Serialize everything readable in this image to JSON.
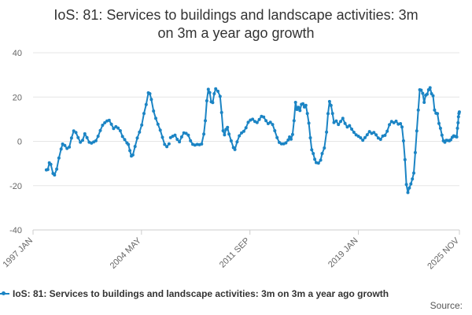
{
  "page": {
    "title_line1": "IoS: 81: Services to buildings and landscape activities: 3m",
    "title_line2": "on 3m a year ago growth",
    "source_label": "Source:"
  },
  "chart_data": {
    "type": "line",
    "title": "IoS: 81: Services to buildings and landscape activities: 3m on 3m a year ago growth",
    "xlabel": "",
    "ylabel": "",
    "ylim": [
      -40,
      40
    ],
    "yticks": [
      40,
      20,
      0,
      -20,
      -40
    ],
    "xlim": [
      1997.0,
      2025.833
    ],
    "xticks": [
      {
        "label": "1997 JAN",
        "value": 1997.0
      },
      {
        "label": "2004 MAY",
        "value": 2004.333
      },
      {
        "label": "2011 SEP",
        "value": 2011.667
      },
      {
        "label": "2019 JAN",
        "value": 2019.0
      },
      {
        "label": "2025 NOV",
        "value": 2025.833
      }
    ],
    "grid": true,
    "legend_position": "bottom",
    "color": "#1b84c4",
    "series": [
      {
        "name": "IoS: 81: Services to buildings and landscape activities: 3m on 3m a year ago growth",
        "points": [
          [
            1997.9,
            -12.9
          ],
          [
            1998.0,
            -12.7
          ],
          [
            1998.1,
            -9.7
          ],
          [
            1998.2,
            -10.4
          ],
          [
            1998.35,
            -14.5
          ],
          [
            1998.45,
            -15.2
          ],
          [
            1998.6,
            -12.5
          ],
          [
            1998.75,
            -7.5
          ],
          [
            1998.9,
            -3.5
          ],
          [
            1999.0,
            -1.2
          ],
          [
            1999.15,
            -1.9
          ],
          [
            1999.3,
            -3.2
          ],
          [
            1999.45,
            -2.6
          ],
          [
            1999.6,
            1.5
          ],
          [
            1999.75,
            4.7
          ],
          [
            1999.9,
            4.0
          ],
          [
            2000.05,
            1.7
          ],
          [
            2000.2,
            -0.4
          ],
          [
            2000.35,
            0.5
          ],
          [
            2000.5,
            3.4
          ],
          [
            2000.65,
            1.7
          ],
          [
            2000.8,
            -0.4
          ],
          [
            2000.95,
            -0.8
          ],
          [
            2001.1,
            -0.3
          ],
          [
            2001.25,
            0.3
          ],
          [
            2001.4,
            2.3
          ],
          [
            2001.55,
            4.9
          ],
          [
            2001.7,
            7.3
          ],
          [
            2001.85,
            8.4
          ],
          [
            2002.0,
            9.2
          ],
          [
            2002.15,
            9.5
          ],
          [
            2002.3,
            7.7
          ],
          [
            2002.45,
            5.8
          ],
          [
            2002.6,
            6.6
          ],
          [
            2002.75,
            6.0
          ],
          [
            2002.9,
            4.8
          ],
          [
            2003.05,
            2.2
          ],
          [
            2003.2,
            0.8
          ],
          [
            2003.35,
            -0.7
          ],
          [
            2003.45,
            -1.4
          ],
          [
            2003.55,
            -4.2
          ],
          [
            2003.65,
            -6.6
          ],
          [
            2003.75,
            -6.1
          ],
          [
            2003.9,
            -2.3
          ],
          [
            2004.05,
            1.5
          ],
          [
            2004.2,
            4.2
          ],
          [
            2004.35,
            7.4
          ],
          [
            2004.5,
            12.6
          ],
          [
            2004.65,
            16.6
          ],
          [
            2004.8,
            21.9
          ],
          [
            2004.9,
            21.5
          ],
          [
            2005.0,
            18.9
          ],
          [
            2005.15,
            13.7
          ],
          [
            2005.3,
            10.4
          ],
          [
            2005.45,
            7.7
          ],
          [
            2005.6,
            5.1
          ],
          [
            2005.75,
            1.8
          ],
          [
            2005.9,
            -1.4
          ],
          [
            2006.05,
            -2.4
          ],
          [
            2006.2,
            -1.1
          ],
          null,
          [
            2006.3,
            1.7
          ],
          [
            2006.45,
            2.3
          ],
          [
            2006.6,
            2.8
          ],
          [
            2006.75,
            0.9
          ],
          [
            2006.9,
            -0.2
          ],
          [
            2007.05,
            2.0
          ],
          [
            2007.2,
            3.8
          ],
          [
            2007.35,
            3.6
          ],
          [
            2007.5,
            2.8
          ],
          [
            2007.65,
            0.3
          ],
          [
            2007.8,
            -1.3
          ],
          [
            2007.95,
            -1.7
          ],
          [
            2008.1,
            -1.4
          ],
          [
            2008.25,
            -1.5
          ],
          [
            2008.4,
            -1.2
          ],
          [
            2008.55,
            3.3
          ],
          [
            2008.65,
            9.3
          ],
          [
            2008.75,
            18.3
          ],
          [
            2008.85,
            23.5
          ],
          [
            2008.95,
            22.0
          ],
          [
            2009.05,
            17.9
          ],
          [
            2009.15,
            17.5
          ],
          [
            2009.25,
            21.5
          ],
          [
            2009.35,
            23.7
          ],
          [
            2009.5,
            22.6
          ],
          [
            2009.65,
            20.3
          ],
          [
            2009.75,
            13.0
          ],
          [
            2009.85,
            4.8
          ],
          [
            2009.95,
            2.9
          ],
          [
            2010.05,
            5.4
          ],
          [
            2010.15,
            6.3
          ],
          [
            2010.25,
            3.3
          ],
          [
            2010.4,
            0.2
          ],
          [
            2010.55,
            -2.8
          ],
          [
            2010.65,
            -3.7
          ],
          [
            2010.8,
            -0.2
          ],
          [
            2010.95,
            2.5
          ],
          [
            2011.1,
            3.8
          ],
          [
            2011.25,
            4.5
          ],
          [
            2011.4,
            6.1
          ],
          [
            2011.55,
            8.6
          ],
          [
            2011.7,
            9.6
          ],
          [
            2011.85,
            10.0
          ],
          [
            2012.0,
            9.0
          ],
          [
            2012.15,
            8.5
          ],
          [
            2012.3,
            9.9
          ],
          [
            2012.45,
            11.3
          ],
          [
            2012.6,
            11.0
          ],
          [
            2012.75,
            9.3
          ],
          [
            2012.9,
            8.0
          ],
          [
            2013.05,
            8.6
          ],
          [
            2013.2,
            7.6
          ],
          [
            2013.35,
            4.8
          ],
          [
            2013.5,
            1.7
          ],
          [
            2013.65,
            -0.5
          ],
          [
            2013.8,
            -1.1
          ],
          [
            2013.95,
            -1.1
          ],
          [
            2014.1,
            -0.7
          ],
          [
            2014.25,
            0.6
          ],
          [
            2014.35,
            2.0
          ],
          [
            2014.45,
            1.0
          ],
          [
            2014.55,
            3.1
          ],
          [
            2014.65,
            9.3
          ],
          [
            2014.75,
            17.6
          ],
          [
            2014.85,
            14.4
          ],
          [
            2014.95,
            15.4
          ],
          [
            2015.05,
            13.9
          ],
          [
            2015.15,
            16.7
          ],
          [
            2015.25,
            17.0
          ],
          [
            2015.35,
            15.5
          ],
          [
            2015.45,
            16.3
          ],
          [
            2015.55,
            12.6
          ],
          [
            2015.65,
            8.2
          ],
          [
            2015.75,
            1.6
          ],
          [
            2015.85,
            -3.8
          ],
          [
            2015.95,
            -5.5
          ],
          [
            2016.05,
            -8.1
          ],
          [
            2016.15,
            -9.6
          ],
          [
            2016.3,
            -9.8
          ],
          [
            2016.45,
            -8.5
          ],
          [
            2016.55,
            -5.5
          ],
          [
            2016.7,
            -3.0
          ],
          [
            2016.85,
            4.2
          ],
          [
            2016.95,
            12.5
          ],
          [
            2017.05,
            18.0
          ],
          [
            2017.15,
            16.2
          ],
          [
            2017.25,
            12.6
          ],
          [
            2017.35,
            8.5
          ],
          [
            2017.5,
            9.2
          ],
          [
            2017.65,
            7.6
          ],
          [
            2017.8,
            9.0
          ],
          [
            2017.95,
            10.4
          ],
          [
            2018.1,
            8.1
          ],
          [
            2018.25,
            6.5
          ],
          [
            2018.4,
            7.1
          ],
          [
            2018.55,
            5.5
          ],
          [
            2018.7,
            4.1
          ],
          [
            2018.85,
            2.9
          ],
          [
            2019.0,
            2.3
          ],
          [
            2019.15,
            1.6
          ],
          [
            2019.3,
            0.5
          ],
          [
            2019.45,
            1.7
          ],
          [
            2019.6,
            3.0
          ],
          [
            2019.75,
            4.4
          ],
          [
            2019.9,
            3.6
          ],
          [
            2020.05,
            4.0
          ],
          [
            2020.2,
            2.9
          ],
          [
            2020.35,
            1.5
          ],
          [
            2020.5,
            0.9
          ],
          [
            2020.65,
            2.4
          ],
          [
            2020.8,
            2.7
          ],
          [
            2020.95,
            4.6
          ],
          [
            2021.1,
            7.5
          ],
          [
            2021.25,
            9.0
          ],
          [
            2021.4,
            8.4
          ],
          [
            2021.55,
            9.1
          ],
          [
            2021.7,
            7.8
          ],
          [
            2021.85,
            8.0
          ],
          [
            2021.95,
            6.5
          ],
          [
            2022.05,
            0.2
          ],
          [
            2022.15,
            -8.3
          ],
          [
            2022.25,
            -19.5
          ],
          [
            2022.35,
            -23.1
          ],
          [
            2022.45,
            -21.0
          ],
          [
            2022.55,
            -19.2
          ],
          [
            2022.65,
            -17.0
          ],
          [
            2022.75,
            -14.3
          ],
          [
            2022.85,
            -5.1
          ],
          [
            2022.95,
            4.7
          ],
          [
            2023.05,
            14.1
          ],
          [
            2023.15,
            23.3
          ],
          [
            2023.25,
            23.1
          ],
          [
            2023.35,
            21.7
          ],
          [
            2023.45,
            17.6
          ],
          [
            2023.55,
            20.8
          ],
          [
            2023.65,
            21.3
          ],
          [
            2023.75,
            23.3
          ],
          [
            2023.85,
            24.2
          ],
          [
            2023.95,
            21.5
          ],
          [
            2024.05,
            20.6
          ],
          [
            2024.15,
            14.1
          ],
          [
            2024.25,
            12.7
          ],
          [
            2024.35,
            12.5
          ],
          [
            2024.45,
            8.1
          ],
          [
            2024.55,
            5.9
          ],
          [
            2024.65,
            2.8
          ],
          [
            2024.75,
            0.3
          ],
          [
            2024.85,
            -0.4
          ],
          [
            2024.95,
            0.5
          ],
          [
            2025.05,
            0.4
          ],
          [
            2025.15,
            0.3
          ],
          [
            2025.25,
            0.7
          ],
          [
            2025.35,
            1.8
          ],
          [
            2025.45,
            2.5
          ],
          [
            2025.55,
            2.2
          ],
          [
            2025.65,
            2.0
          ],
          [
            2025.7,
            5.9
          ],
          [
            2025.74,
            8.4
          ],
          [
            2025.77,
            11.1
          ],
          [
            2025.8,
            12.6
          ],
          [
            2025.83,
            13.3
          ]
        ]
      }
    ]
  }
}
